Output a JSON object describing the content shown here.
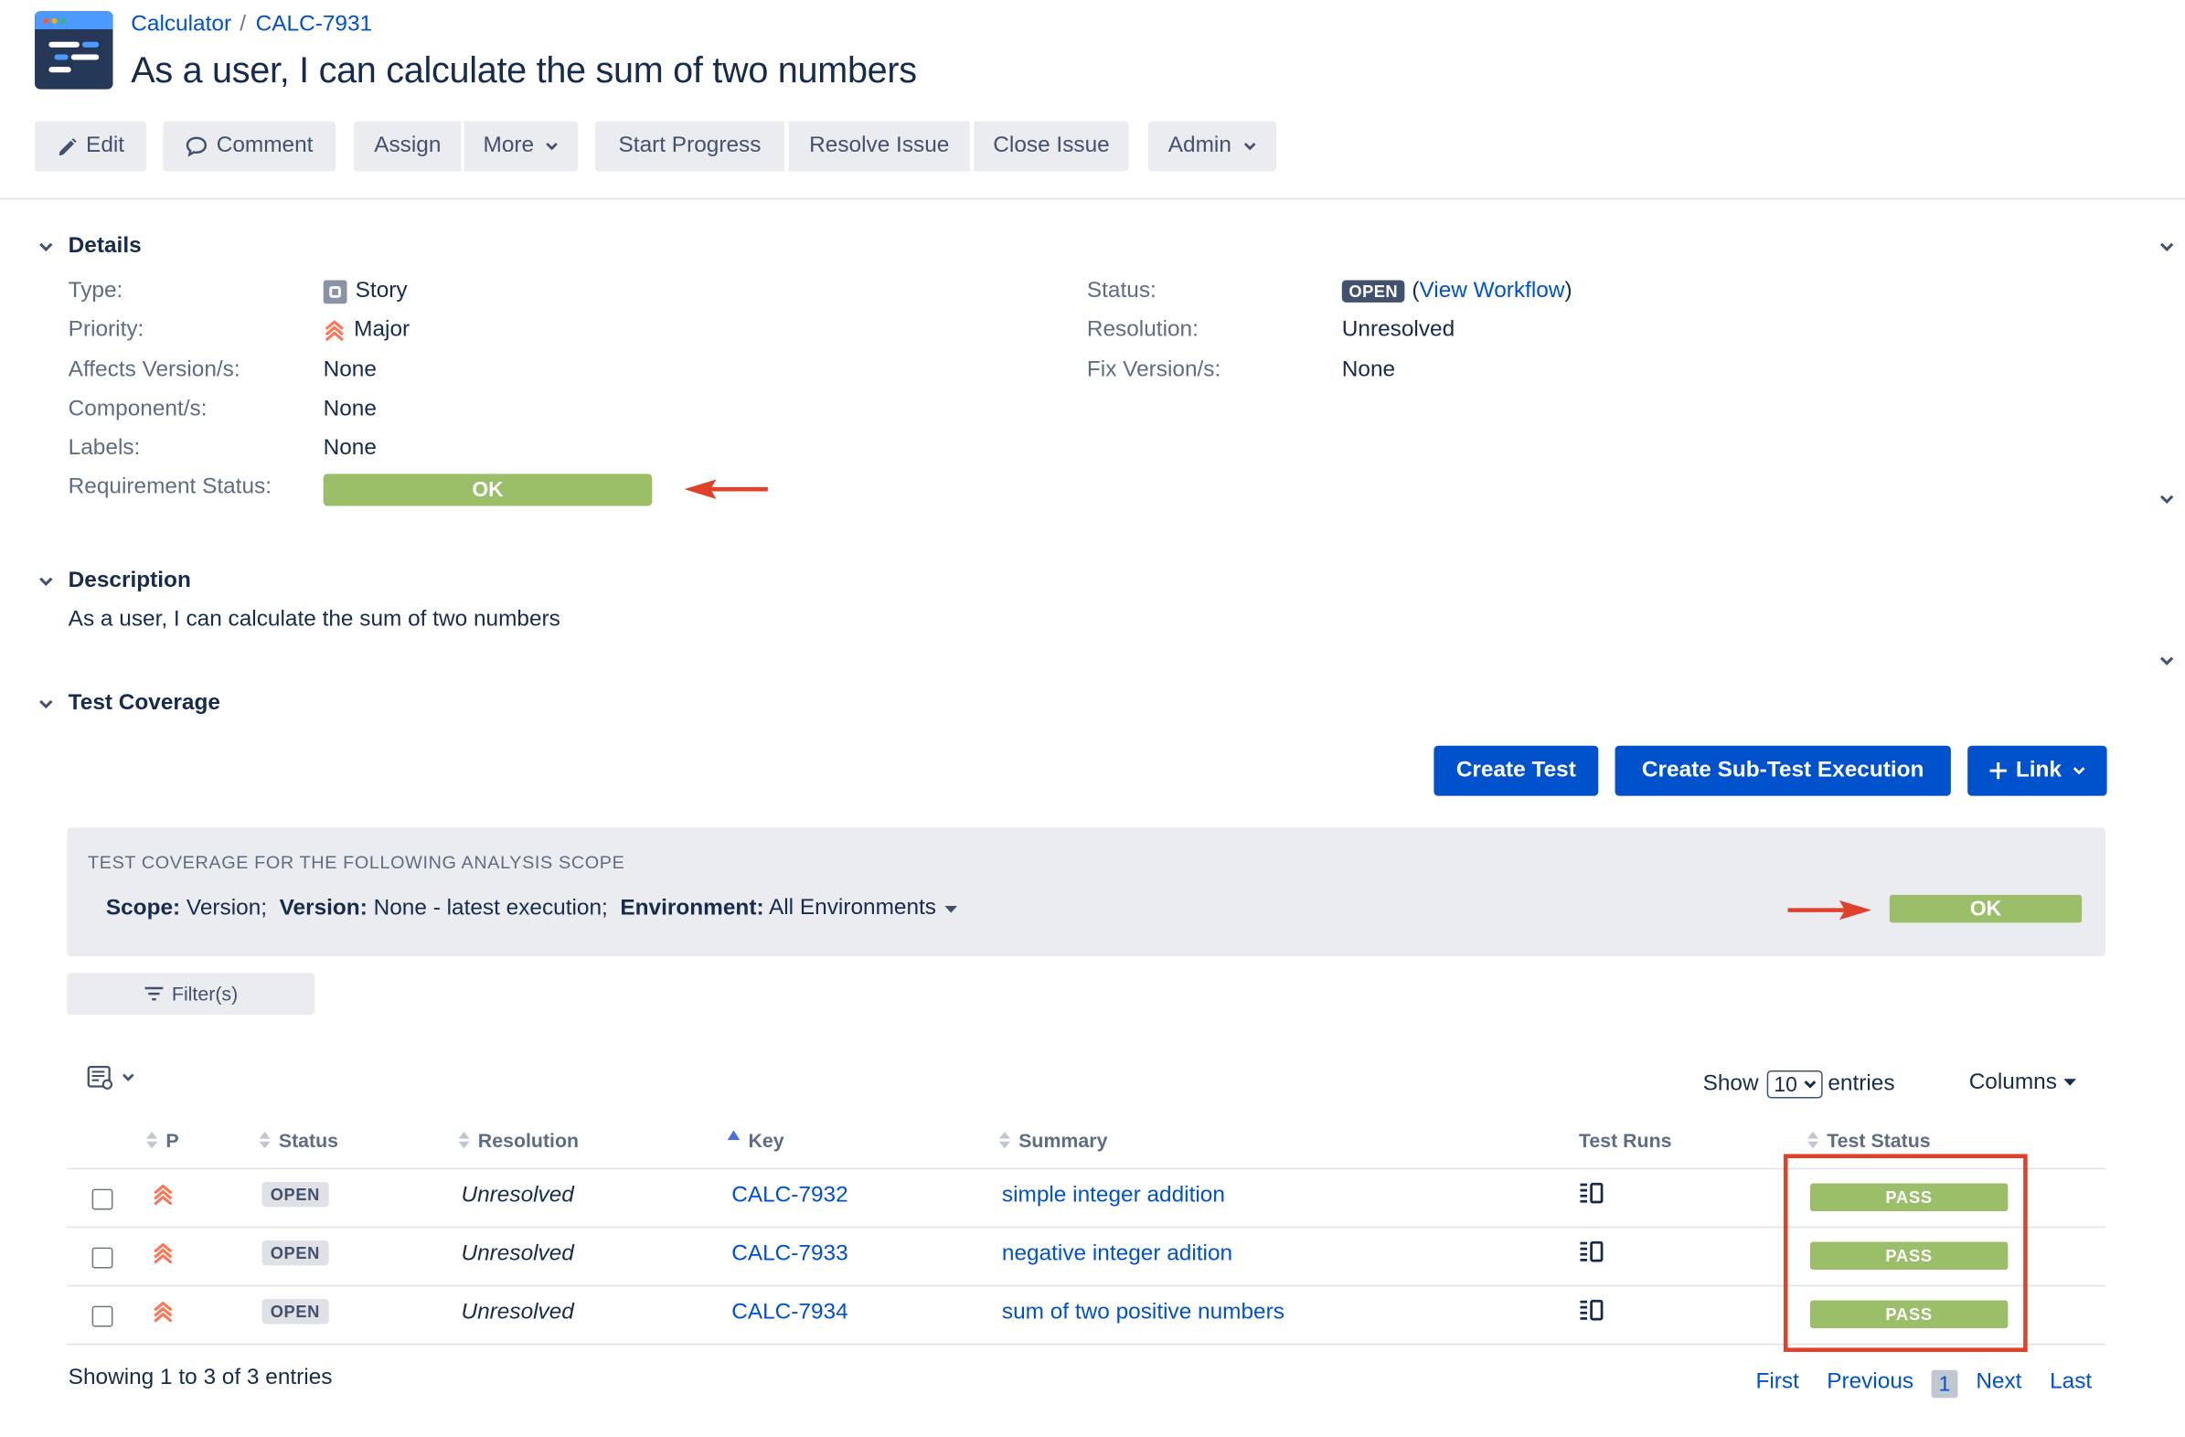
{
  "breadcrumb": {
    "project": "Calculator",
    "separator": "/",
    "issue_key": "CALC-7931"
  },
  "issue": {
    "title": "As a user, I can calculate the sum of two numbers"
  },
  "toolbar": {
    "edit": "Edit",
    "comment": "Comment",
    "assign": "Assign",
    "more": "More",
    "start_progress": "Start Progress",
    "resolve_issue": "Resolve Issue",
    "close_issue": "Close Issue",
    "admin": "Admin"
  },
  "details": {
    "heading": "Details",
    "type_label": "Type:",
    "type_value": "Story",
    "priority_label": "Priority:",
    "priority_value": "Major",
    "affects_label": "Affects Version/s:",
    "affects_value": "None",
    "component_label": "Component/s:",
    "component_value": "None",
    "labels_label": "Labels:",
    "labels_value": "None",
    "req_status_label": "Requirement Status:",
    "req_status_value": "OK",
    "status_label": "Status:",
    "status_value": "OPEN",
    "view_workflow_open": "(",
    "view_workflow": "View Workflow",
    "view_workflow_close": ")",
    "resolution_label": "Resolution:",
    "resolution_value": "Unresolved",
    "fix_label": "Fix Version/s:",
    "fix_value": "None"
  },
  "description": {
    "heading": "Description",
    "text": "As a user, I can calculate the sum of two numbers"
  },
  "coverage": {
    "heading": "Test Coverage",
    "create_test": "Create Test",
    "create_sub_test_execution": "Create Sub-Test Execution",
    "link": "Link",
    "scope_caption": "TEST COVERAGE FOR THE FOLLOWING ANALYSIS SCOPE",
    "scope_key": "Scope:",
    "scope_val": "Version;",
    "version_key": "Version:",
    "version_val": "None - latest execution;",
    "env_key": "Environment:",
    "env_val": "All Environments",
    "status": "OK",
    "filters": "Filter(s)"
  },
  "table": {
    "show_label": "Show",
    "page_size": "10",
    "entries_label": "entries",
    "columns_label": "Columns",
    "headers": {
      "p": "P",
      "status": "Status",
      "resolution": "Resolution",
      "key": "Key",
      "summary": "Summary",
      "test_runs": "Test Runs",
      "test_status": "Test Status"
    },
    "rows": [
      {
        "status": "OPEN",
        "resolution": "Unresolved",
        "key": "CALC-7932",
        "summary": "simple integer addition",
        "test_status": "PASS"
      },
      {
        "status": "OPEN",
        "resolution": "Unresolved",
        "key": "CALC-7933",
        "summary": "negative integer adition",
        "test_status": "PASS"
      },
      {
        "status": "OPEN",
        "resolution": "Unresolved",
        "key": "CALC-7934",
        "summary": "sum of two positive numbers",
        "test_status": "PASS"
      }
    ],
    "showing": "Showing 1 to 3 of 3 entries"
  },
  "pagination": {
    "first": "First",
    "previous": "Previous",
    "current": "1",
    "next": "Next",
    "last": "Last"
  },
  "icons": {
    "project": "project-avatar-icon",
    "edit": "pencil-icon",
    "comment": "speech-bubble-icon",
    "story": "story-type-icon",
    "priority": "priority-major-icon",
    "arrow": "red-arrow-icon",
    "filter": "filter-lines-icon",
    "column_toggle": "list-settings-icon",
    "test_runs": "test-runs-icon"
  },
  "colors": {
    "accent": "#0052cc",
    "ok": "#9bbf69",
    "annotation": "#e0412a",
    "priority": "#ff7452"
  }
}
